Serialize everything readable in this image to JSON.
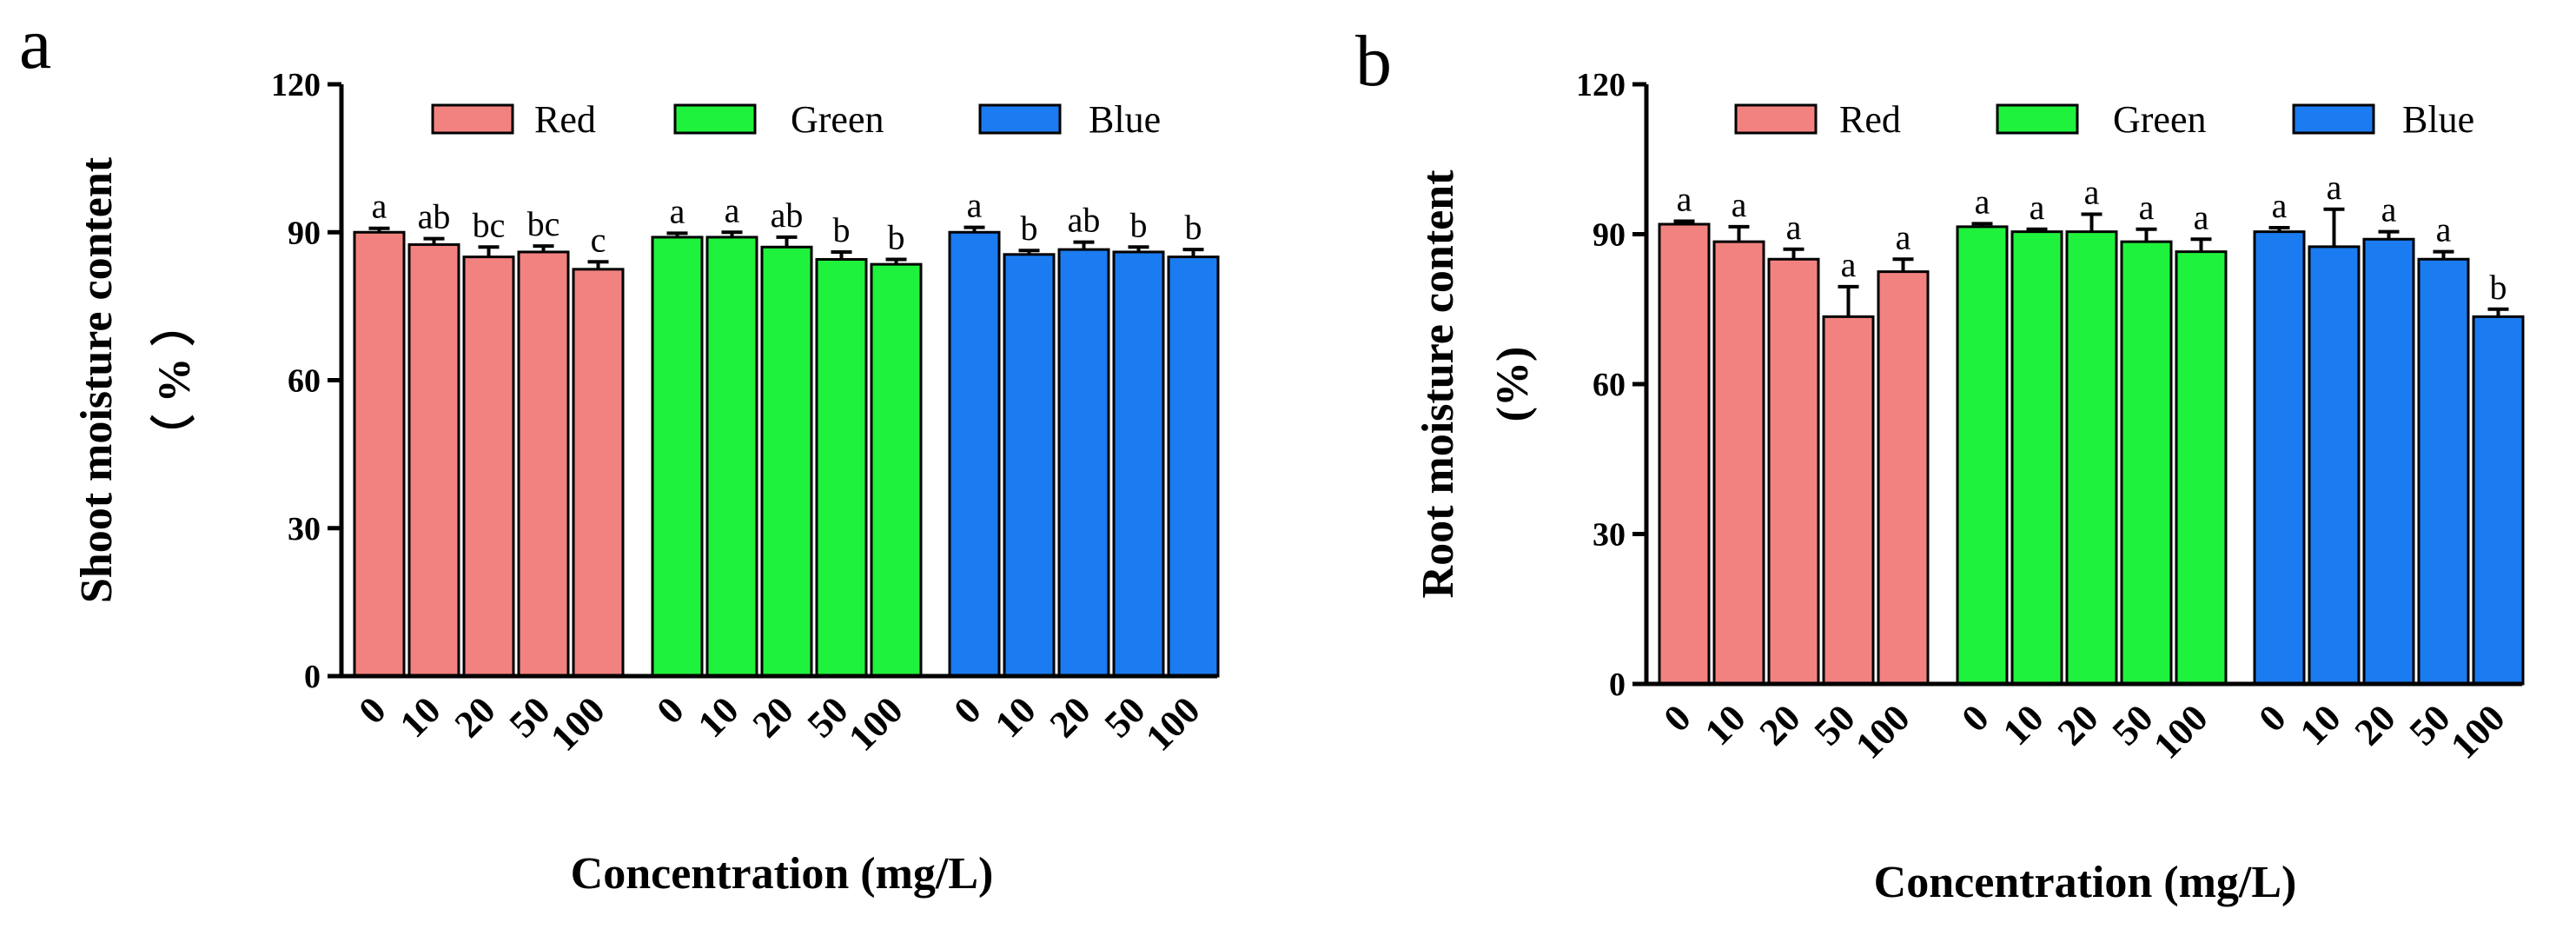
{
  "chart_data": [
    {
      "panel": "a",
      "type": "bar",
      "title": "",
      "ylabel_line1": "Shoot moisture content",
      "ylabel_line2": "（ % ）",
      "xlabel": "Concentration (mg/L)",
      "ylim": [
        0,
        120
      ],
      "yticks": [
        "0",
        "30",
        "60",
        "90",
        "120"
      ],
      "categories": [
        "0",
        "10",
        "20",
        "50",
        "100"
      ],
      "legend_position": "top",
      "series": [
        {
          "name": "Red",
          "color": "#f28280",
          "values": [
            90,
            87.5,
            85,
            86,
            82.5
          ],
          "errors": [
            0.8,
            1.2,
            2,
            1.2,
            1.5
          ],
          "letters": [
            "a",
            "ab",
            "bc",
            "bc",
            "c"
          ]
        },
        {
          "name": "Green",
          "color": "#1ff23c",
          "values": [
            89,
            89,
            87,
            84.5,
            83.5
          ],
          "errors": [
            0.8,
            1,
            2,
            1.5,
            1
          ],
          "letters": [
            "a",
            "a",
            "ab",
            "b",
            "b"
          ]
        },
        {
          "name": "Blue",
          "color": "#1b7bf0",
          "values": [
            90,
            85.5,
            86.5,
            86,
            85
          ],
          "errors": [
            1,
            0.8,
            1.5,
            1,
            1.5
          ],
          "letters": [
            "a",
            "b",
            "ab",
            "b",
            "b"
          ]
        }
      ]
    },
    {
      "panel": "b",
      "type": "bar",
      "title": "",
      "ylabel_line1": "Root moisture content",
      "ylabel_line2": "(%)",
      "xlabel": "Concentration (mg/L)",
      "ylim": [
        0,
        120
      ],
      "yticks": [
        "0",
        "30",
        "60",
        "90",
        "120"
      ],
      "categories": [
        "0",
        "10",
        "20",
        "50",
        "100"
      ],
      "legend_position": "top",
      "series": [
        {
          "name": "Red",
          "color": "#f28280",
          "values": [
            92,
            88.5,
            85,
            73.5,
            82.5
          ],
          "errors": [
            0.6,
            3,
            2,
            6,
            2.5
          ],
          "letters": [
            "a",
            "a",
            "a",
            "a",
            "a"
          ]
        },
        {
          "name": "Green",
          "color": "#1ff23c",
          "values": [
            91.5,
            90.5,
            90.5,
            88.5,
            86.5
          ],
          "errors": [
            0.6,
            0.5,
            3.5,
            2.5,
            2.5
          ],
          "letters": [
            "a",
            "a",
            "a",
            "a",
            "a"
          ]
        },
        {
          "name": "Blue",
          "color": "#1b7bf0",
          "values": [
            90.5,
            87.5,
            89,
            85,
            73.5
          ],
          "errors": [
            0.8,
            7.5,
            1.5,
            1.5,
            1.5
          ],
          "letters": [
            "a",
            "a",
            "a",
            "a",
            "b"
          ]
        }
      ]
    }
  ]
}
